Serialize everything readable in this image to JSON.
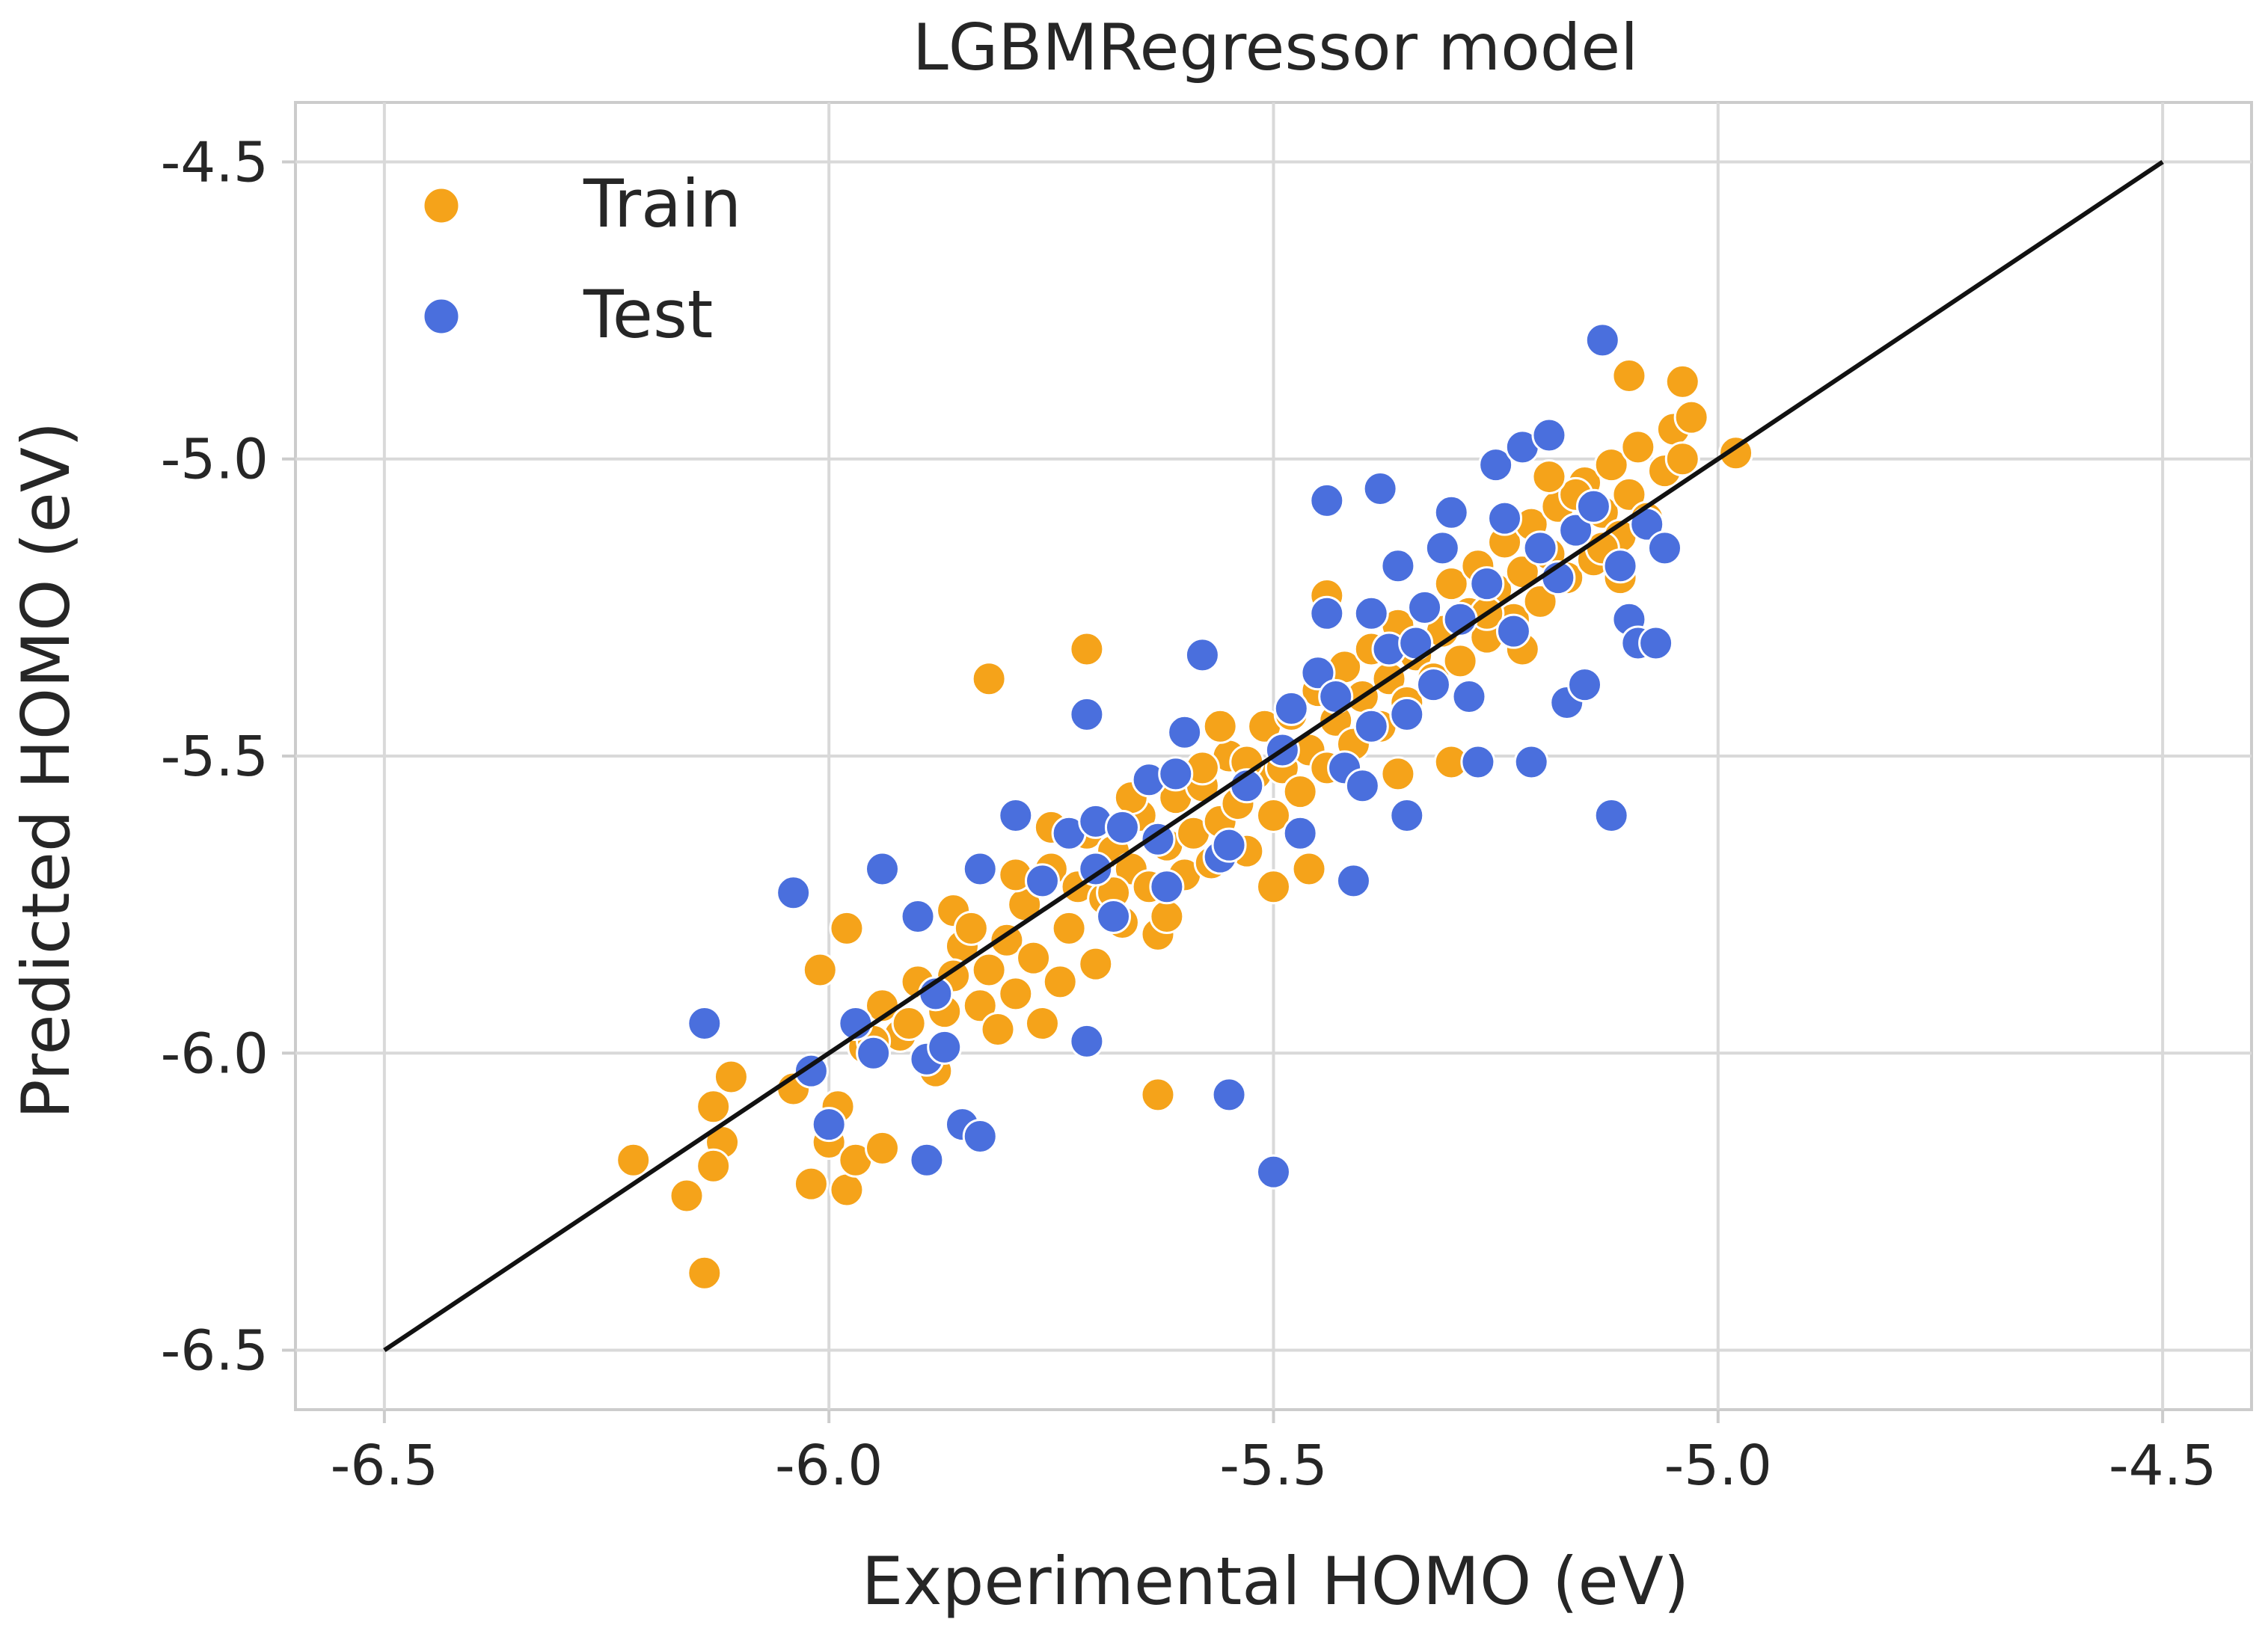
{
  "chart_data": {
    "type": "scatter",
    "title": "LGBMRegressor model",
    "xlabel": "Experimental HOMO (eV)",
    "ylabel": "Predicted HOMO (eV)",
    "xlim": [
      -6.6,
      -4.4
    ],
    "ylim": [
      -6.6,
      -4.4
    ],
    "xticks": [
      -6.5,
      -6.0,
      -5.5,
      -5.0,
      -4.5
    ],
    "yticks": [
      -6.5,
      -6.0,
      -5.5,
      -5.0,
      -4.5
    ],
    "xtick_labels": [
      "-6.5",
      "-6.0",
      "-5.5",
      "-5.0",
      "-4.5"
    ],
    "ytick_labels": [
      "-6.5",
      "-6.0",
      "-5.5",
      "-5.0",
      "-4.5"
    ],
    "grid": true,
    "legend_position": "top-left",
    "reference_line": {
      "from": [
        -6.5,
        -6.5
      ],
      "to": [
        -4.5,
        -4.5
      ],
      "color": "#111111"
    },
    "series": [
      {
        "name": "Train",
        "color": "#f5a31a",
        "points": [
          [
            -6.22,
            -6.18
          ],
          [
            -6.16,
            -6.24
          ],
          [
            -6.14,
            -6.37
          ],
          [
            -6.13,
            -6.09
          ],
          [
            -6.12,
            -6.15
          ],
          [
            -6.13,
            -6.19
          ],
          [
            -6.11,
            -6.04
          ],
          [
            -6.04,
            -6.06
          ],
          [
            -6.02,
            -6.22
          ],
          [
            -6.0,
            -6.15
          ],
          [
            -5.99,
            -6.09
          ],
          [
            -5.98,
            -6.23
          ],
          [
            -5.97,
            -6.18
          ],
          [
            -5.94,
            -6.16
          ],
          [
            -6.01,
            -5.86
          ],
          [
            -5.98,
            -5.79
          ],
          [
            -5.96,
            -5.99
          ],
          [
            -5.94,
            -5.92
          ],
          [
            -5.92,
            -5.97
          ],
          [
            -5.9,
            -5.88
          ],
          [
            -5.88,
            -6.03
          ],
          [
            -5.87,
            -5.93
          ],
          [
            -5.86,
            -5.76
          ],
          [
            -5.85,
            -5.82
          ],
          [
            -5.84,
            -5.79
          ],
          [
            -5.83,
            -5.92
          ],
          [
            -5.82,
            -5.86
          ],
          [
            -5.81,
            -5.96
          ],
          [
            -5.8,
            -5.81
          ],
          [
            -5.79,
            -5.9
          ],
          [
            -5.78,
            -5.75
          ],
          [
            -5.77,
            -5.84
          ],
          [
            -5.76,
            -5.95
          ],
          [
            -5.75,
            -5.69
          ],
          [
            -5.74,
            -5.88
          ],
          [
            -5.73,
            -5.79
          ],
          [
            -5.72,
            -5.72
          ],
          [
            -5.71,
            -5.63
          ],
          [
            -5.7,
            -5.85
          ],
          [
            -5.69,
            -5.74
          ],
          [
            -5.68,
            -5.66
          ],
          [
            -5.67,
            -5.78
          ],
          [
            -5.66,
            -5.69
          ],
          [
            -5.65,
            -5.6
          ],
          [
            -5.64,
            -5.72
          ],
          [
            -5.63,
            -5.8
          ],
          [
            -5.62,
            -5.65
          ],
          [
            -5.61,
            -5.57
          ],
          [
            -5.6,
            -5.7
          ],
          [
            -5.59,
            -5.63
          ],
          [
            -5.58,
            -5.55
          ],
          [
            -5.57,
            -5.68
          ],
          [
            -5.56,
            -5.61
          ],
          [
            -5.55,
            -5.5
          ],
          [
            -5.54,
            -5.58
          ],
          [
            -5.53,
            -5.66
          ],
          [
            -5.52,
            -5.53
          ],
          [
            -5.51,
            -5.45
          ],
          [
            -5.5,
            -5.6
          ],
          [
            -5.49,
            -5.52
          ],
          [
            -5.48,
            -5.43
          ],
          [
            -5.47,
            -5.56
          ],
          [
            -5.46,
            -5.49
          ],
          [
            -5.45,
            -5.39
          ],
          [
            -5.44,
            -5.52
          ],
          [
            -5.43,
            -5.44
          ],
          [
            -5.42,
            -5.35
          ],
          [
            -5.41,
            -5.48
          ],
          [
            -5.4,
            -5.4
          ],
          [
            -5.39,
            -5.32
          ],
          [
            -5.38,
            -5.45
          ],
          [
            -5.37,
            -5.37
          ],
          [
            -5.36,
            -5.28
          ],
          [
            -5.35,
            -5.41
          ],
          [
            -5.34,
            -5.33
          ],
          [
            -5.33,
            -5.25
          ],
          [
            -5.32,
            -5.37
          ],
          [
            -5.31,
            -5.29
          ],
          [
            -5.3,
            -5.21
          ],
          [
            -5.29,
            -5.34
          ],
          [
            -5.28,
            -5.26
          ],
          [
            -5.27,
            -5.18
          ],
          [
            -5.26,
            -5.3
          ],
          [
            -5.25,
            -5.22
          ],
          [
            -5.24,
            -5.14
          ],
          [
            -5.23,
            -5.27
          ],
          [
            -5.22,
            -5.19
          ],
          [
            -5.21,
            -5.11
          ],
          [
            -5.2,
            -5.24
          ],
          [
            -5.19,
            -5.16
          ],
          [
            -5.18,
            -5.08
          ],
          [
            -5.17,
            -5.2
          ],
          [
            -5.16,
            -5.12
          ],
          [
            -5.15,
            -5.04
          ],
          [
            -5.14,
            -5.17
          ],
          [
            -5.13,
            -5.09
          ],
          [
            -5.12,
            -5.01
          ],
          [
            -5.11,
            -5.13
          ],
          [
            -5.1,
            -5.06
          ],
          [
            -5.09,
            -4.98
          ],
          [
            -5.08,
            -5.1
          ],
          [
            -5.06,
            -5.02
          ],
          [
            -5.05,
            -4.95
          ],
          [
            -5.04,
            -5.0
          ],
          [
            -5.03,
            -4.93
          ],
          [
            -5.1,
            -4.86
          ],
          [
            -5.04,
            -4.87
          ],
          [
            -4.98,
            -4.99
          ],
          [
            -5.11,
            -5.2
          ],
          [
            -5.13,
            -5.15
          ],
          [
            -5.16,
            -5.06
          ],
          [
            -5.19,
            -5.03
          ],
          [
            -5.82,
            -5.37
          ],
          [
            -5.71,
            -5.32
          ],
          [
            -5.63,
            -6.07
          ],
          [
            -5.5,
            -5.72
          ],
          [
            -5.46,
            -5.69
          ],
          [
            -5.44,
            -5.23
          ],
          [
            -5.36,
            -5.53
          ],
          [
            -5.3,
            -5.51
          ],
          [
            -5.26,
            -5.26
          ],
          [
            -5.22,
            -5.32
          ],
          [
            -5.56,
            -5.45
          ],
          [
            -5.53,
            -5.51
          ],
          [
            -5.58,
            -5.52
          ],
          [
            -5.66,
            -5.57
          ],
          [
            -5.68,
            -5.73
          ],
          [
            -5.75,
            -5.62
          ],
          [
            -5.79,
            -5.7
          ],
          [
            -5.86,
            -5.87
          ],
          [
            -5.91,
            -5.95
          ],
          [
            -5.95,
            -5.98
          ],
          [
            -5.62,
            -5.77
          ]
        ]
      },
      {
        "name": "Test",
        "color": "#4a6fdd",
        "points": [
          [
            -6.14,
            -5.95
          ],
          [
            -6.04,
            -5.73
          ],
          [
            -6.02,
            -6.03
          ],
          [
            -6.0,
            -6.12
          ],
          [
            -5.97,
            -5.95
          ],
          [
            -5.95,
            -6.0
          ],
          [
            -5.94,
            -5.69
          ],
          [
            -5.9,
            -5.77
          ],
          [
            -5.89,
            -6.01
          ],
          [
            -5.88,
            -5.9
          ],
          [
            -5.89,
            -6.18
          ],
          [
            -5.87,
            -5.99
          ],
          [
            -5.85,
            -6.12
          ],
          [
            -5.83,
            -6.14
          ],
          [
            -5.83,
            -5.69
          ],
          [
            -5.79,
            -5.6
          ],
          [
            -5.76,
            -5.71
          ],
          [
            -5.73,
            -5.63
          ],
          [
            -5.71,
            -5.98
          ],
          [
            -5.71,
            -5.43
          ],
          [
            -5.7,
            -5.69
          ],
          [
            -5.7,
            -5.61
          ],
          [
            -5.68,
            -5.77
          ],
          [
            -5.67,
            -5.62
          ],
          [
            -5.64,
            -5.54
          ],
          [
            -5.63,
            -5.64
          ],
          [
            -5.62,
            -5.72
          ],
          [
            -5.61,
            -5.53
          ],
          [
            -5.6,
            -5.46
          ],
          [
            -5.58,
            -5.33
          ],
          [
            -5.56,
            -5.67
          ],
          [
            -5.55,
            -6.07
          ],
          [
            -5.55,
            -5.65
          ],
          [
            -5.53,
            -5.55
          ],
          [
            -5.5,
            -6.2
          ],
          [
            -5.49,
            -5.49
          ],
          [
            -5.48,
            -5.42
          ],
          [
            -5.47,
            -5.63
          ],
          [
            -5.45,
            -5.36
          ],
          [
            -5.44,
            -5.26
          ],
          [
            -5.44,
            -5.07
          ],
          [
            -5.43,
            -5.4
          ],
          [
            -5.42,
            -5.52
          ],
          [
            -5.41,
            -5.71
          ],
          [
            -5.4,
            -5.55
          ],
          [
            -5.39,
            -5.45
          ],
          [
            -5.39,
            -5.26
          ],
          [
            -5.38,
            -5.05
          ],
          [
            -5.37,
            -5.32
          ],
          [
            -5.36,
            -5.18
          ],
          [
            -5.35,
            -5.43
          ],
          [
            -5.35,
            -5.6
          ],
          [
            -5.34,
            -5.31
          ],
          [
            -5.33,
            -5.25
          ],
          [
            -5.32,
            -5.38
          ],
          [
            -5.31,
            -5.15
          ],
          [
            -5.3,
            -5.09
          ],
          [
            -5.29,
            -5.27
          ],
          [
            -5.28,
            -5.4
          ],
          [
            -5.27,
            -5.51
          ],
          [
            -5.26,
            -5.21
          ],
          [
            -5.25,
            -5.01
          ],
          [
            -5.24,
            -5.1
          ],
          [
            -5.23,
            -5.29
          ],
          [
            -5.22,
            -4.98
          ],
          [
            -5.21,
            -5.51
          ],
          [
            -5.2,
            -5.15
          ],
          [
            -5.19,
            -4.96
          ],
          [
            -5.18,
            -5.2
          ],
          [
            -5.17,
            -5.41
          ],
          [
            -5.16,
            -5.12
          ],
          [
            -5.15,
            -5.38
          ],
          [
            -5.14,
            -5.08
          ],
          [
            -5.13,
            -4.8
          ],
          [
            -5.12,
            -5.6
          ],
          [
            -5.11,
            -5.18
          ],
          [
            -5.1,
            -5.27
          ],
          [
            -5.09,
            -5.31
          ],
          [
            -5.08,
            -5.11
          ],
          [
            -5.07,
            -5.31
          ],
          [
            -5.06,
            -5.15
          ]
        ]
      }
    ]
  }
}
